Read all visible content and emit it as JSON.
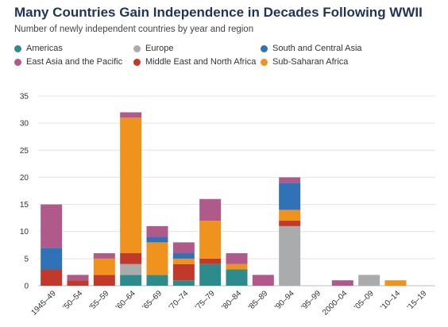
{
  "chart_data": {
    "type": "bar",
    "stacked": true,
    "title": "Many Countries Gain Independence in Decades Following WWII",
    "subtitle": "Number of newly independent countries by year and region",
    "xlabel": "",
    "ylabel": "",
    "ylim": [
      0,
      35
    ],
    "yticks": [
      0,
      5,
      10,
      15,
      20,
      25,
      30,
      35
    ],
    "grid": true,
    "legend_position": "top",
    "categories": [
      "1945–49",
      "'50–54",
      "'55–59",
      "'60–64",
      "'65–69",
      "'70–74",
      "'75–79",
      "'80–84",
      "'85–89",
      "'90–94",
      "'95–99",
      "2000–04",
      "'05–09",
      "'10–14",
      "'15–19"
    ],
    "series": [
      {
        "name": "Americas",
        "color": "#2e8b8b",
        "values": [
          0,
          0,
          0,
          2,
          2,
          1,
          4,
          3,
          0,
          0,
          0,
          0,
          0,
          0,
          0
        ]
      },
      {
        "name": "Europe",
        "color": "#a9abad",
        "values": [
          0,
          0,
          0,
          2,
          0,
          0,
          0,
          0,
          0,
          11,
          0,
          0,
          2,
          0,
          0
        ]
      },
      {
        "name": "Middle East and North Africa",
        "color": "#c0392b",
        "values": [
          3,
          1,
          2,
          2,
          0,
          3,
          1,
          0,
          0,
          1,
          0,
          0,
          0,
          0,
          0
        ]
      },
      {
        "name": "Sub-Saharan Africa",
        "color": "#f0921e",
        "values": [
          0,
          0,
          3,
          25,
          6,
          1,
          7,
          1,
          0,
          2,
          0,
          0,
          0,
          1,
          0
        ]
      },
      {
        "name": "South and Central Asia",
        "color": "#2f72b8",
        "values": [
          4,
          0,
          0,
          0,
          1,
          1,
          0,
          0,
          0,
          5,
          0,
          0,
          0,
          0,
          0
        ]
      },
      {
        "name": "East Asia and the Pacific",
        "color": "#b05a8c",
        "values": [
          8,
          1,
          1,
          1,
          2,
          2,
          4,
          2,
          2,
          1,
          0,
          1,
          0,
          0,
          0
        ]
      }
    ],
    "legend_order": [
      "Americas",
      "Europe",
      "South and Central Asia",
      "East Asia and the Pacific",
      "Middle East and North Africa",
      "Sub-Saharan Africa"
    ]
  }
}
